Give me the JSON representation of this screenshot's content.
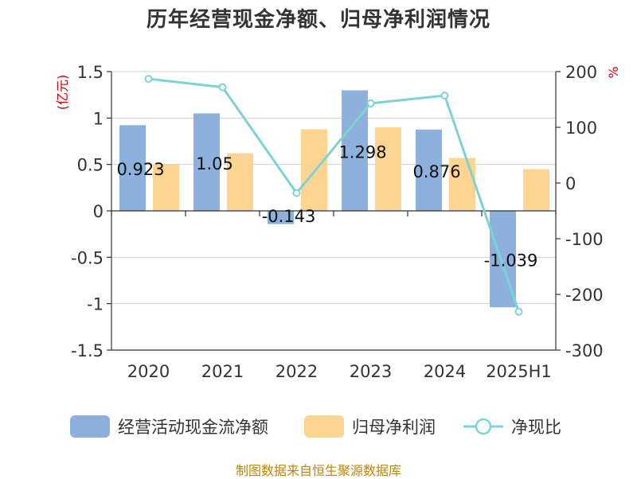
{
  "title": "历年经营现金净额、归母净利润情况",
  "source": "制图数据来自恒生聚源数据库",
  "chart_data": {
    "type": "bar",
    "categories": [
      "2020",
      "2021",
      "2022",
      "2023",
      "2024",
      "2025H1"
    ],
    "y_left": {
      "unit": "(亿元)",
      "ylim": [
        -1.5,
        1.5
      ],
      "ticks": [
        1.5,
        1,
        0.5,
        0,
        -0.5,
        -1,
        -1.5
      ],
      "tick_labels": [
        "1.5",
        "1",
        "0.5",
        "0",
        "-0.5",
        "-1",
        "-1.5"
      ]
    },
    "y_right": {
      "unit": "%",
      "ylim": [
        -300,
        200
      ],
      "ticks": [
        200,
        100,
        0,
        -100,
        -200,
        -300
      ],
      "tick_labels": [
        "200",
        "100",
        "0",
        "-100",
        "-200",
        "-300"
      ]
    },
    "series": [
      {
        "name": "经营活动现金流净额",
        "type": "bar",
        "axis": "left",
        "color": "#8eb0dc",
        "values": [
          0.923,
          1.05,
          -0.143,
          1.298,
          0.876,
          -1.039
        ],
        "labels": [
          "0.923",
          "1.05",
          "-0.143",
          "1.298",
          "0.876",
          "-1.039"
        ]
      },
      {
        "name": "归母净利润",
        "type": "bar",
        "axis": "left",
        "color": "#fdd593",
        "values": [
          0.5,
          0.62,
          0.88,
          0.9,
          0.57,
          0.45
        ]
      },
      {
        "name": "净现比",
        "type": "line",
        "axis": "right",
        "color": "#7dd3d3",
        "values": [
          187,
          172,
          -18,
          143,
          157,
          -231
        ]
      }
    ],
    "grid": true,
    "legend_position": "bottom"
  }
}
